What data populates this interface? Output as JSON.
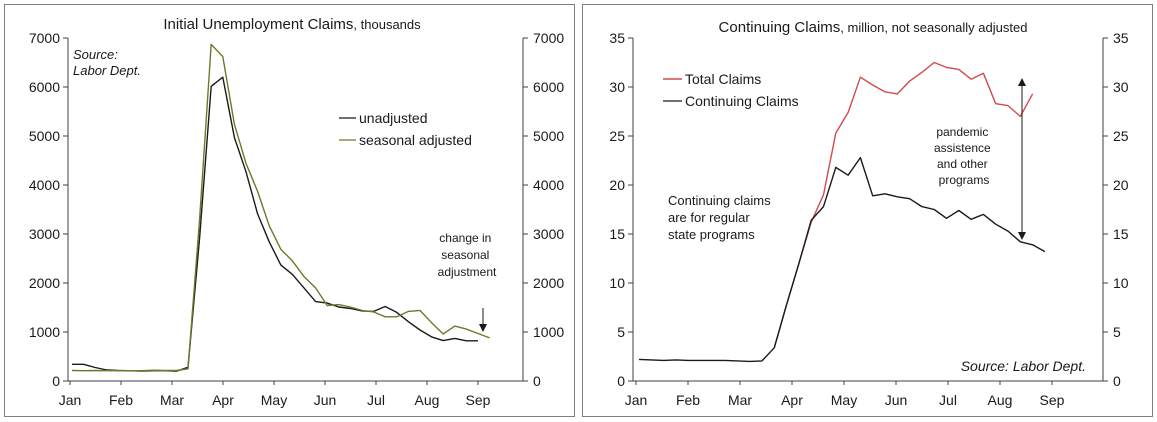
{
  "colors": {
    "dark_line": "#1a1a1a",
    "olive": "#6b7a2a",
    "red": "#d24b4b",
    "axis": "#404040"
  },
  "chart_data": [
    {
      "type": "line",
      "title_main": "Initial Unemployment Claims",
      "title_suffix": ", thousands",
      "xticks": [
        "Jan",
        "Feb",
        "Mar",
        "Apr",
        "May",
        "Jun",
        "Jul",
        "Aug",
        "Sep"
      ],
      "ylim": [
        0,
        7000
      ],
      "yticks": [
        "0",
        "1000",
        "2000",
        "3000",
        "4000",
        "5000",
        "6000",
        "7000"
      ],
      "source_line1": "Source:",
      "source_line2": "Labor Dept.",
      "annotation": [
        "change in",
        "seasonal",
        "adjustment"
      ],
      "series": [
        {
          "name": "unadjusted",
          "color": "#1a1a1a",
          "values": [
            340,
            340,
            275,
            225,
            215,
            210,
            205,
            210,
            210,
            200,
            280,
            2920,
            6015,
            6200,
            4970,
            4270,
            3410,
            2840,
            2370,
            2175,
            1900,
            1620,
            1590,
            1510,
            1480,
            1430,
            1420,
            1520,
            1400,
            1210,
            1040,
            900,
            825,
            870,
            820,
            820
          ]
        },
        {
          "name": "seasonal adjusted",
          "color": "#6b7a2a",
          "values": [
            215,
            210,
            215,
            210,
            210,
            210,
            210,
            220,
            215,
            215,
            250,
            3300,
            6870,
            6620,
            5240,
            4440,
            3870,
            3170,
            2690,
            2450,
            2130,
            1900,
            1540,
            1560,
            1510,
            1440,
            1410,
            1310,
            1310,
            1420,
            1440,
            1190,
            960,
            1120,
            1060,
            970,
            880
          ]
        }
      ]
    },
    {
      "type": "line",
      "title_main": "Continuing Claims",
      "title_suffix": ", million, not seasonally adjusted",
      "xticks": [
        "Jan",
        "Feb",
        "Mar",
        "Apr",
        "May",
        "Jun",
        "Jul",
        "Aug",
        "Sep"
      ],
      "ylim": [
        0,
        35
      ],
      "yticks": [
        "0",
        "5",
        "10",
        "15",
        "20",
        "25",
        "30",
        "35"
      ],
      "source": "Source: Labor Dept.",
      "annotation_left": [
        "Continuing claims",
        "are for regular",
        "state programs"
      ],
      "annotation_right": [
        "pandemic",
        "assistence",
        "and other",
        "programs"
      ],
      "series": [
        {
          "name": "Total Claims",
          "color": "#d24b4b",
          "start": 11,
          "values": [
            3.4,
            7.8,
            12.0,
            16.2,
            19.0,
            25.3,
            27.4,
            31.0,
            30.2,
            29.5,
            29.3,
            30.6,
            31.5,
            32.5,
            32.0,
            31.8,
            30.8,
            31.4,
            28.3,
            28.1,
            27.0,
            29.3
          ]
        },
        {
          "name": "Continuing Claims",
          "color": "#1a1a1a",
          "start": 0,
          "values": [
            2.2,
            2.15,
            2.1,
            2.15,
            2.1,
            2.1,
            2.1,
            2.1,
            2.05,
            2.0,
            2.05,
            3.4,
            7.8,
            12.0,
            16.4,
            17.8,
            21.8,
            21.0,
            22.8,
            18.9,
            19.1,
            18.8,
            18.6,
            17.8,
            17.5,
            16.6,
            17.4,
            16.5,
            17.0,
            16.0,
            15.3,
            14.2,
            13.9,
            13.2
          ]
        }
      ]
    }
  ]
}
